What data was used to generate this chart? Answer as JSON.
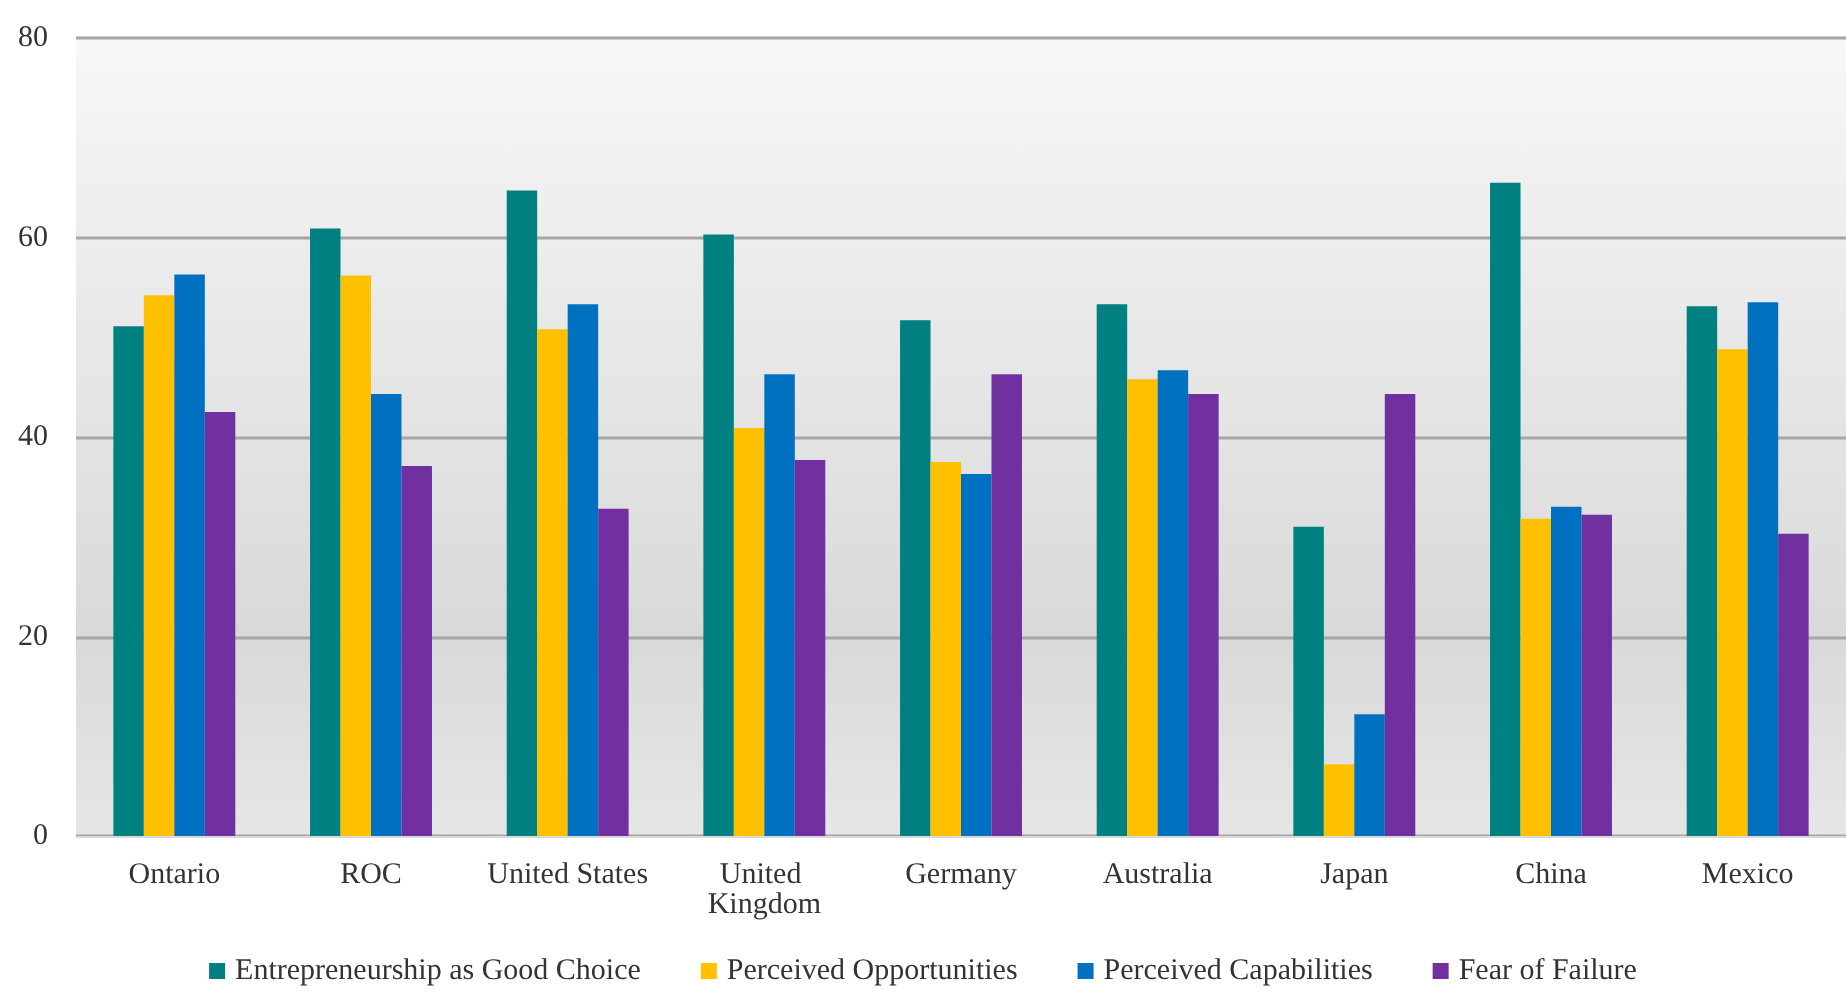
{
  "chart_data": {
    "type": "bar",
    "categories": [
      "Ontario",
      "ROC",
      "United States",
      "United Kingdom",
      "Germany",
      "Australia",
      "Japan",
      "China",
      "Mexico"
    ],
    "series": [
      {
        "name": "Entrepreneurship as Good Choice",
        "color": "#008080",
        "values": [
          51.1,
          60.9,
          64.7,
          60.3,
          51.7,
          53.3,
          31.0,
          65.5,
          53.1
        ]
      },
      {
        "name": "Perceived Opportunities",
        "color": "#ffc000",
        "values": [
          54.2,
          56.2,
          50.8,
          40.9,
          37.5,
          45.8,
          7.2,
          31.8,
          48.8
        ]
      },
      {
        "name": "Perceived Capabilities",
        "color": "#0070c0",
        "values": [
          56.3,
          44.3,
          53.3,
          46.3,
          36.3,
          46.7,
          12.2,
          33.0,
          53.5
        ]
      },
      {
        "name": "Fear of Failure",
        "color": "#7030a0",
        "values": [
          42.5,
          37.1,
          32.8,
          37.7,
          46.3,
          44.3,
          44.3,
          32.2,
          30.3
        ]
      }
    ],
    "ylim": [
      0,
      80
    ],
    "yticks": [
      0,
      20,
      40,
      60,
      80
    ],
    "grid": "y",
    "legend": "bottom"
  }
}
